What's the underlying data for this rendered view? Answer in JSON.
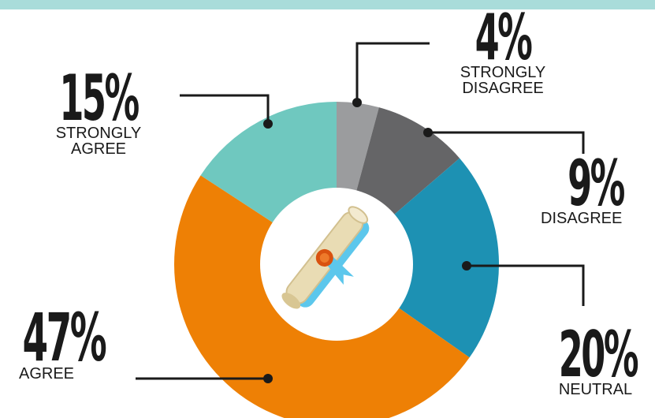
{
  "chart_data": {
    "type": "pie",
    "donut": true,
    "slices": [
      {
        "label": "STRONGLY DISAGREE",
        "value": 4,
        "display": "4%",
        "color": "#9b9c9e"
      },
      {
        "label": "DISAGREE",
        "value": 9,
        "display": "9%",
        "color": "#656567"
      },
      {
        "label": "NEUTRAL",
        "value": 20,
        "display": "20%",
        "color": "#1d91b3"
      },
      {
        "label": "AGREE",
        "value": 47,
        "display": "47%",
        "color": "#ee8005"
      },
      {
        "label": "STRONGLY AGREE",
        "value": 15,
        "display": "15%",
        "color": "#6fc8bf"
      }
    ],
    "center_icon": "diploma-scroll-icon",
    "accent_bar_color": "#a9dcda"
  },
  "labels": {
    "strongly_disagree": {
      "pct": "4%",
      "line1": "STRONGLY",
      "line2": "DISAGREE"
    },
    "disagree": {
      "pct": "9%",
      "line1": "DISAGREE"
    },
    "neutral": {
      "pct": "20%",
      "line1": "NEUTRAL"
    },
    "agree": {
      "pct": "47%",
      "line1": "AGREE"
    },
    "strongly_agree": {
      "pct": "15%",
      "line1": "STRONGLY",
      "line2": "AGREE"
    }
  }
}
